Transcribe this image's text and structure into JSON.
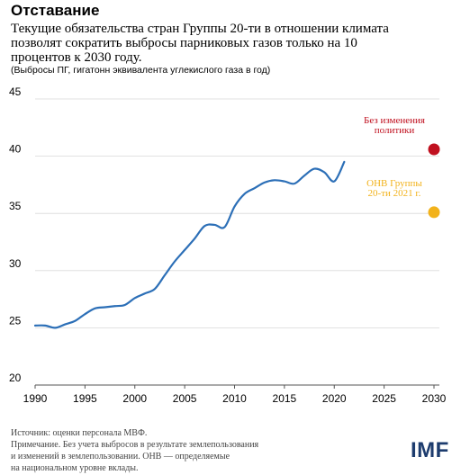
{
  "title": "Отставание",
  "subtitle": "Текущие обязательства стран Группы 20-ти в отношении климата позволят сократить выбросы парниковых газов только на 10 процентов к 2030 году.",
  "units": "(Выбросы ПГ,  гигатонн эквивалента углекислого газа в год)",
  "footer": {
    "source": "Источник: оценки персонала МВФ.",
    "note_1": "Примечание. Без учета выбросов в результате землепользования",
    "note_2": "и изменений в землепользовании. ОНВ — определяемые",
    "note_3": "на национальном уровне вклады."
  },
  "logo": "IMF",
  "colors": {
    "line": "#2c6fb7",
    "grid": "#d9d9d9",
    "point_no_change": "#c0101f",
    "point_ndc": "#f2b21b"
  },
  "chart_data": {
    "type": "line",
    "xlim": [
      1990,
      2030
    ],
    "ylim": [
      20,
      45
    ],
    "x_ticks": [
      "1990",
      "1995",
      "2000",
      "2005",
      "2010",
      "2015",
      "2020",
      "2025",
      "2030"
    ],
    "y_ticks": [
      "20",
      "25",
      "30",
      "35",
      "40",
      "45"
    ],
    "grid": "horizontal",
    "series": [
      {
        "x": [
          1990,
          1991,
          1992,
          1993,
          1994,
          1995,
          1996,
          1997,
          1998,
          1999,
          2000,
          2001,
          2002,
          2003,
          2004,
          2005,
          2006,
          2007,
          2008,
          2009,
          2010,
          2011,
          2012,
          2013,
          2014,
          2015,
          2016,
          2017,
          2018,
          2019,
          2020,
          2021
        ],
        "values": [
          25.2,
          25.2,
          25.0,
          25.3,
          25.6,
          26.2,
          26.7,
          26.8,
          26.9,
          27.0,
          27.6,
          28.0,
          28.4,
          29.6,
          30.8,
          31.8,
          32.8,
          33.9,
          34.0,
          33.8,
          35.6,
          36.7,
          37.2,
          37.7,
          37.9,
          37.8,
          37.6,
          38.3,
          38.9,
          38.6,
          37.8,
          39.5
        ]
      }
    ],
    "points": [
      {
        "label_1": "Без изменения",
        "label_2": "политики",
        "x": 2030,
        "y": 40.6
      },
      {
        "label_1": "ОНВ Группы",
        "label_2": "20-ти 2021 г.",
        "x": 2030,
        "y": 35.1
      }
    ]
  }
}
